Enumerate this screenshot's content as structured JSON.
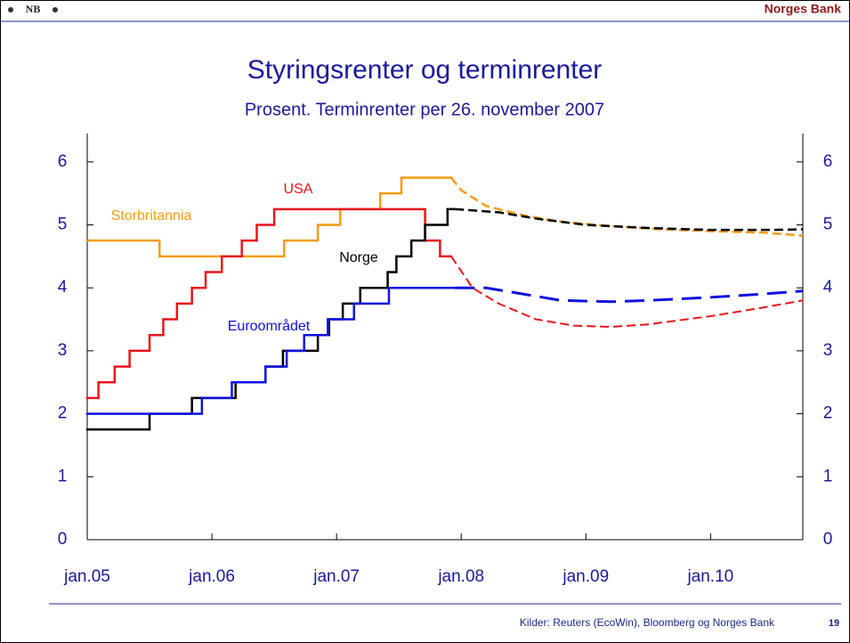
{
  "header": {
    "logo": "NB",
    "bank": "Norges Bank"
  },
  "footer": {
    "source": "Kilder: Reuters (EcoWin), Bloomberg og Norges Bank",
    "page": "19"
  },
  "chart_data": {
    "type": "line",
    "step": true,
    "title": "Styringsrenter og terminrenter",
    "subtitle": "Prosent. Terminrenter per 26. november 2007",
    "xlim": [
      2005,
      2010.74
    ],
    "xticks": [
      {
        "value": 2005,
        "label": "jan.05"
      },
      {
        "value": 2006,
        "label": "jan.06"
      },
      {
        "value": 2007,
        "label": "jan.07"
      },
      {
        "value": 2008,
        "label": "jan.08"
      },
      {
        "value": 2009,
        "label": "jan.09"
      },
      {
        "value": 2010,
        "label": "jan.10"
      }
    ],
    "ylim": [
      0,
      6.45
    ],
    "yticks": [
      0,
      1,
      2,
      3,
      4,
      5,
      6
    ],
    "y2lim": [
      0,
      6.45
    ],
    "y2ticks": [
      0,
      1,
      2,
      3,
      4,
      5,
      6
    ],
    "series": [
      {
        "name": "Storbritannia",
        "color": "#f39c12",
        "x": [
          2005.0,
          2005.58,
          2006.58,
          2006.85,
          2007.03,
          2007.35,
          2007.52
        ],
        "values": [
          4.75,
          4.5,
          4.75,
          5.0,
          5.25,
          5.5,
          5.75
        ],
        "forward_x": [
          2007.92,
          2008.0,
          2008.2,
          2008.5,
          2008.8,
          2009.2,
          2009.6,
          2010.0,
          2010.4,
          2010.74
        ],
        "forward_values": [
          5.75,
          5.55,
          5.3,
          5.15,
          5.05,
          4.98,
          4.93,
          4.9,
          4.88,
          4.83
        ]
      },
      {
        "name": "USA",
        "color": "#e8141b",
        "x": [
          2005.0,
          2005.09,
          2005.22,
          2005.34,
          2005.5,
          2005.61,
          2005.72,
          2005.84,
          2005.95,
          2006.08,
          2006.24,
          2006.36,
          2006.5,
          2007.71,
          2007.83
        ],
        "values": [
          2.25,
          2.5,
          2.75,
          3.0,
          3.25,
          3.5,
          3.75,
          4.0,
          4.25,
          4.5,
          4.75,
          5.0,
          5.25,
          4.75,
          4.5
        ],
        "forward_x": [
          2007.92,
          2008.09,
          2008.3,
          2008.6,
          2008.9,
          2009.2,
          2009.5,
          2010.0,
          2010.4,
          2010.74
        ],
        "forward_values": [
          4.5,
          4.0,
          3.75,
          3.5,
          3.4,
          3.38,
          3.42,
          3.55,
          3.68,
          3.8
        ]
      },
      {
        "name": "Norge",
        "color": "#000000",
        "x": [
          2005.0,
          2005.5,
          2005.84,
          2006.19,
          2006.43,
          2006.57,
          2006.85,
          2006.94,
          2007.05,
          2007.19,
          2007.41,
          2007.48,
          2007.6,
          2007.71,
          2007.89
        ],
        "values": [
          1.75,
          2.0,
          2.25,
          2.5,
          2.75,
          3.0,
          3.25,
          3.5,
          3.75,
          4.0,
          4.25,
          4.5,
          4.75,
          5.0,
          5.25
        ],
        "forward_x": [
          2007.95,
          2008.3,
          2008.6,
          2009.0,
          2009.5,
          2010.0,
          2010.5,
          2010.74
        ],
        "forward_values": [
          5.25,
          5.2,
          5.1,
          5.0,
          4.95,
          4.92,
          4.92,
          4.93
        ]
      },
      {
        "name": "Euroområdet",
        "color": "#1010e0",
        "x": [
          2005.0,
          2005.92,
          2006.16,
          2006.43,
          2006.6,
          2006.74,
          2006.93,
          2007.14,
          2007.42
        ],
        "values": [
          2.0,
          2.25,
          2.5,
          2.75,
          3.0,
          3.25,
          3.5,
          3.75,
          4.0
        ],
        "forward_x": [
          2007.95,
          2008.2,
          2008.5,
          2008.8,
          2009.2,
          2009.5,
          2010.0,
          2010.4,
          2010.74
        ],
        "forward_values": [
          4.0,
          4.0,
          3.9,
          3.8,
          3.78,
          3.8,
          3.85,
          3.9,
          3.95
        ]
      }
    ]
  }
}
